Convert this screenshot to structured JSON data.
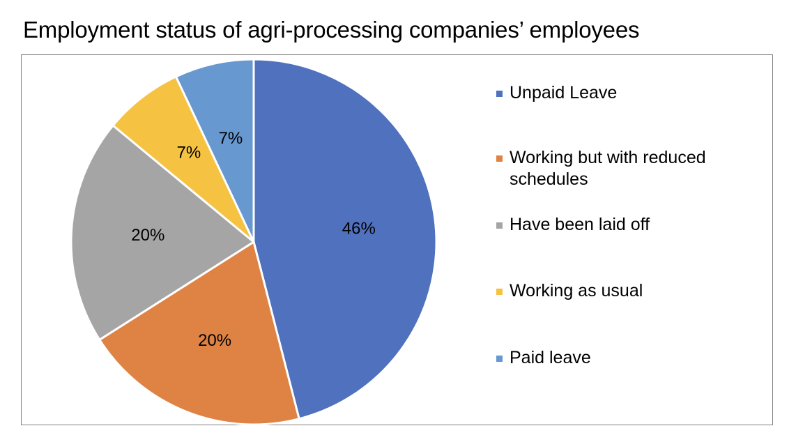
{
  "chart_data": {
    "type": "pie",
    "title": "Employment status of agri-processing companies’ employees",
    "start_angle_deg": 0,
    "direction": "clockwise",
    "legend_position": "right",
    "slices": [
      {
        "label": "Unpaid Leave",
        "value": 46,
        "value_label": "46%",
        "color": "#4f71be"
      },
      {
        "label": "Working but with reduced schedules",
        "value": 20,
        "value_label": "20%",
        "color": "#df8344"
      },
      {
        "label": "Have been laid off",
        "value": 20,
        "value_label": "20%",
        "color": "#a5a5a5"
      },
      {
        "label": "Working as usual",
        "value": 7,
        "value_label": "7%",
        "color": "#f5c242"
      },
      {
        "label": "Paid leave",
        "value": 7,
        "value_label": "7%",
        "color": "#6798d0"
      }
    ]
  }
}
